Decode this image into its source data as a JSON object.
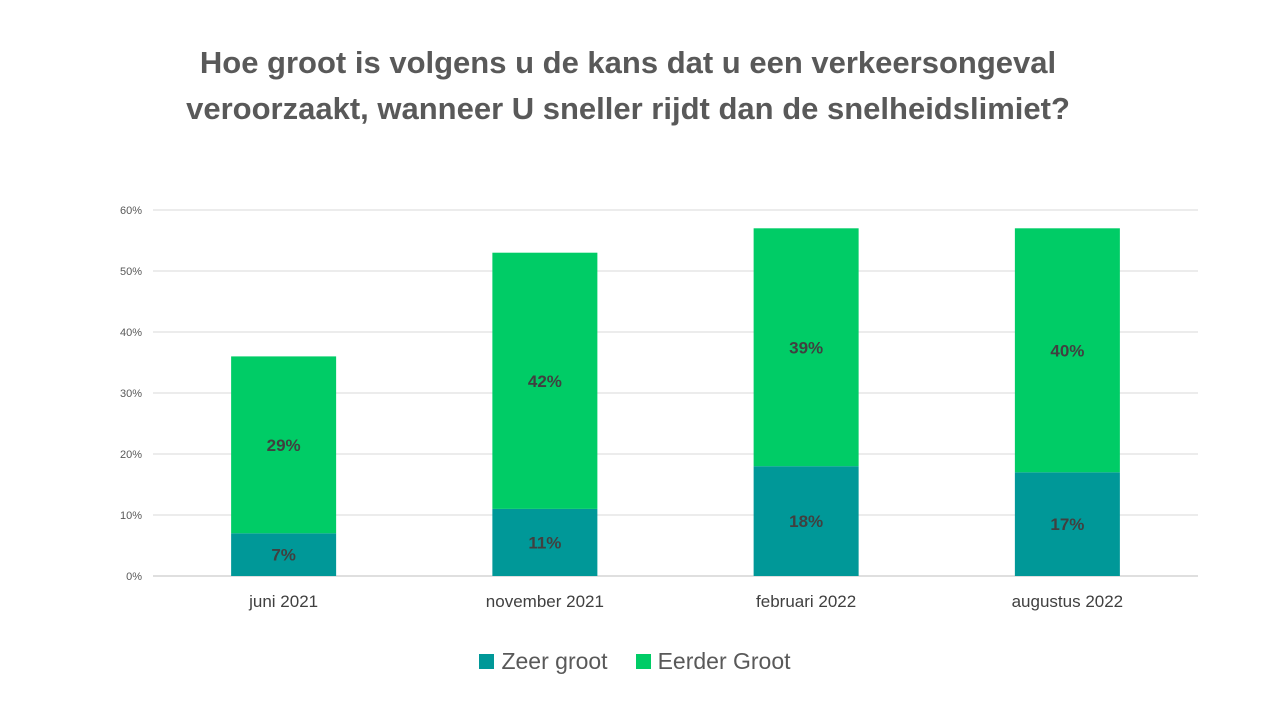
{
  "colors": {
    "zeer_groot": "#009898",
    "eerder_groot": "#00CC66",
    "grid": "#D9D9D9",
    "axis": "#BFBFBF"
  },
  "chart_data": {
    "type": "bar",
    "stacked": true,
    "title": "Hoe groot is volgens u de kans dat u een verkeersongeval veroorzaakt, wanneer U sneller rijdt dan de snelheidslimiet?",
    "title_lines": [
      "Hoe groot is volgens u de kans dat u een verkeersongeval",
      "veroorzaakt, wanneer U sneller rijdt dan de snelheidslimiet?"
    ],
    "categories": [
      "juni 2021",
      "november 2021",
      "februari 2022",
      "augustus 2022"
    ],
    "series": [
      {
        "name": "Zeer groot",
        "values": [
          7,
          11,
          18,
          17
        ],
        "labels": [
          "7%",
          "11%",
          "18%",
          "17%"
        ]
      },
      {
        "name": "Eerder Groot",
        "values": [
          29,
          42,
          39,
          40
        ],
        "labels": [
          "29%",
          "42%",
          "39%",
          "40%"
        ]
      }
    ],
    "ylim": [
      0,
      60
    ],
    "yticks": [
      0,
      10,
      20,
      30,
      40,
      50,
      60
    ],
    "ytick_labels": [
      "0%",
      "10%",
      "20%",
      "30%",
      "40%",
      "50%",
      "60%"
    ],
    "xlabel": "",
    "ylabel": "",
    "grid": true,
    "legend_position": "bottom"
  }
}
